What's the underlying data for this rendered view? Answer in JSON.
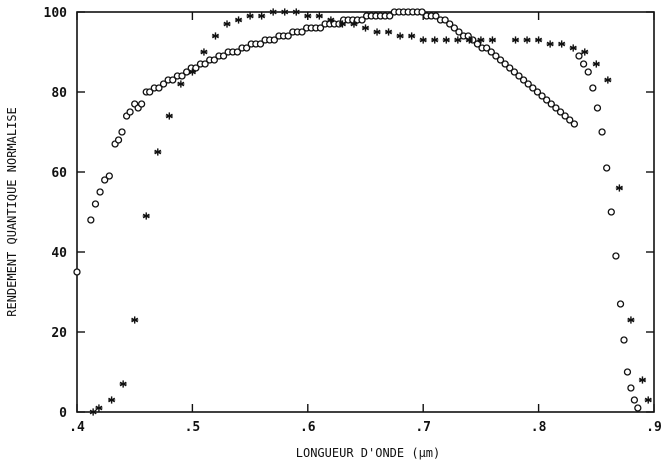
{
  "chart_data": {
    "type": "scatter",
    "title": "",
    "xlabel": "LONGUEUR D'ONDE (µm)",
    "ylabel": "RENDEMENT QUANTIQUE NORMALISE",
    "xlim": [
      0.4,
      0.9
    ],
    "ylim": [
      0,
      100
    ],
    "x_ticks": [
      0.4,
      0.5,
      0.6,
      0.7,
      0.8,
      0.9
    ],
    "x_tick_labels": [
      ".4",
      ".5",
      ".6",
      ".7",
      ".8",
      ".9"
    ],
    "y_ticks": [
      0,
      20,
      40,
      60,
      80,
      100
    ],
    "y_tick_labels": [
      "0",
      "20",
      "40",
      "60",
      "80",
      "100"
    ],
    "grid": false,
    "legend": "none",
    "series": [
      {
        "marker": "circle",
        "color": "#111111",
        "points": [
          [
            0.4,
            35
          ],
          [
            0.412,
            48
          ],
          [
            0.416,
            52
          ],
          [
            0.42,
            55
          ],
          [
            0.424,
            58
          ],
          [
            0.428,
            59
          ],
          [
            0.433,
            67
          ],
          [
            0.436,
            68
          ],
          [
            0.439,
            70
          ],
          [
            0.443,
            74
          ],
          [
            0.446,
            75
          ],
          [
            0.45,
            77
          ],
          [
            0.453,
            76
          ],
          [
            0.456,
            77
          ],
          [
            0.46,
            80
          ],
          [
            0.463,
            80
          ],
          [
            0.467,
            81
          ],
          [
            0.471,
            81
          ],
          [
            0.475,
            82
          ],
          [
            0.479,
            83
          ],
          [
            0.483,
            83
          ],
          [
            0.487,
            84
          ],
          [
            0.491,
            84
          ],
          [
            0.495,
            85
          ],
          [
            0.499,
            86
          ],
          [
            0.503,
            86
          ],
          [
            0.507,
            87
          ],
          [
            0.511,
            87
          ],
          [
            0.515,
            88
          ],
          [
            0.519,
            88
          ],
          [
            0.523,
            89
          ],
          [
            0.527,
            89
          ],
          [
            0.531,
            90
          ],
          [
            0.535,
            90
          ],
          [
            0.539,
            90
          ],
          [
            0.543,
            91
          ],
          [
            0.547,
            91
          ],
          [
            0.551,
            92
          ],
          [
            0.555,
            92
          ],
          [
            0.559,
            92
          ],
          [
            0.563,
            93
          ],
          [
            0.567,
            93
          ],
          [
            0.571,
            93
          ],
          [
            0.575,
            94
          ],
          [
            0.579,
            94
          ],
          [
            0.583,
            94
          ],
          [
            0.587,
            95
          ],
          [
            0.591,
            95
          ],
          [
            0.595,
            95
          ],
          [
            0.599,
            96
          ],
          [
            0.603,
            96
          ],
          [
            0.607,
            96
          ],
          [
            0.611,
            96
          ],
          [
            0.615,
            97
          ],
          [
            0.619,
            97
          ],
          [
            0.623,
            97
          ],
          [
            0.627,
            97
          ],
          [
            0.631,
            98
          ],
          [
            0.635,
            98
          ],
          [
            0.639,
            98
          ],
          [
            0.643,
            98
          ],
          [
            0.647,
            98
          ],
          [
            0.651,
            99
          ],
          [
            0.655,
            99
          ],
          [
            0.659,
            99
          ],
          [
            0.663,
            99
          ],
          [
            0.667,
            99
          ],
          [
            0.671,
            99
          ],
          [
            0.675,
            100
          ],
          [
            0.679,
            100
          ],
          [
            0.683,
            100
          ],
          [
            0.687,
            100
          ],
          [
            0.691,
            100
          ],
          [
            0.695,
            100
          ],
          [
            0.699,
            100
          ],
          [
            0.703,
            99
          ],
          [
            0.707,
            99
          ],
          [
            0.711,
            99
          ],
          [
            0.715,
            98
          ],
          [
            0.719,
            98
          ],
          [
            0.723,
            97
          ],
          [
            0.727,
            96
          ],
          [
            0.731,
            95
          ],
          [
            0.735,
            94
          ],
          [
            0.739,
            94
          ],
          [
            0.743,
            93
          ],
          [
            0.747,
            92
          ],
          [
            0.751,
            91
          ],
          [
            0.755,
            91
          ],
          [
            0.759,
            90
          ],
          [
            0.763,
            89
          ],
          [
            0.767,
            88
          ],
          [
            0.771,
            87
          ],
          [
            0.775,
            86
          ],
          [
            0.779,
            85
          ],
          [
            0.783,
            84
          ],
          [
            0.787,
            83
          ],
          [
            0.791,
            82
          ],
          [
            0.795,
            81
          ],
          [
            0.799,
            80
          ],
          [
            0.803,
            79
          ],
          [
            0.807,
            78
          ],
          [
            0.811,
            77
          ],
          [
            0.815,
            76
          ],
          [
            0.819,
            75
          ],
          [
            0.823,
            74
          ],
          [
            0.827,
            73
          ],
          [
            0.831,
            72
          ],
          [
            0.835,
            89
          ],
          [
            0.839,
            87
          ],
          [
            0.843,
            85
          ],
          [
            0.847,
            81
          ],
          [
            0.851,
            76
          ],
          [
            0.855,
            70
          ],
          [
            0.859,
            61
          ],
          [
            0.863,
            50
          ],
          [
            0.867,
            39
          ],
          [
            0.871,
            27
          ],
          [
            0.874,
            18
          ],
          [
            0.877,
            10
          ],
          [
            0.88,
            6
          ],
          [
            0.883,
            3
          ],
          [
            0.886,
            1
          ]
        ]
      },
      {
        "marker": "asterisk",
        "color": "#111111",
        "points": [
          [
            0.414,
            0
          ],
          [
            0.419,
            1
          ],
          [
            0.43,
            3
          ],
          [
            0.44,
            7
          ],
          [
            0.45,
            23
          ],
          [
            0.46,
            49
          ],
          [
            0.47,
            65
          ],
          [
            0.48,
            74
          ],
          [
            0.49,
            82
          ],
          [
            0.5,
            85
          ],
          [
            0.51,
            90
          ],
          [
            0.52,
            94
          ],
          [
            0.53,
            97
          ],
          [
            0.54,
            98
          ],
          [
            0.55,
            99
          ],
          [
            0.56,
            99
          ],
          [
            0.57,
            100
          ],
          [
            0.58,
            100
          ],
          [
            0.59,
            100
          ],
          [
            0.6,
            99
          ],
          [
            0.61,
            99
          ],
          [
            0.62,
            98
          ],
          [
            0.63,
            97
          ],
          [
            0.64,
            97
          ],
          [
            0.65,
            96
          ],
          [
            0.66,
            95
          ],
          [
            0.67,
            95
          ],
          [
            0.68,
            94
          ],
          [
            0.69,
            94
          ],
          [
            0.7,
            93
          ],
          [
            0.71,
            93
          ],
          [
            0.72,
            93
          ],
          [
            0.73,
            93
          ],
          [
            0.74,
            93
          ],
          [
            0.75,
            93
          ],
          [
            0.76,
            93
          ],
          [
            0.78,
            93
          ],
          [
            0.79,
            93
          ],
          [
            0.8,
            93
          ],
          [
            0.81,
            92
          ],
          [
            0.82,
            92
          ],
          [
            0.83,
            91
          ],
          [
            0.84,
            90
          ],
          [
            0.85,
            87
          ],
          [
            0.86,
            83
          ],
          [
            0.87,
            56
          ],
          [
            0.88,
            23
          ],
          [
            0.89,
            8
          ],
          [
            0.895,
            3
          ]
        ]
      }
    ]
  }
}
